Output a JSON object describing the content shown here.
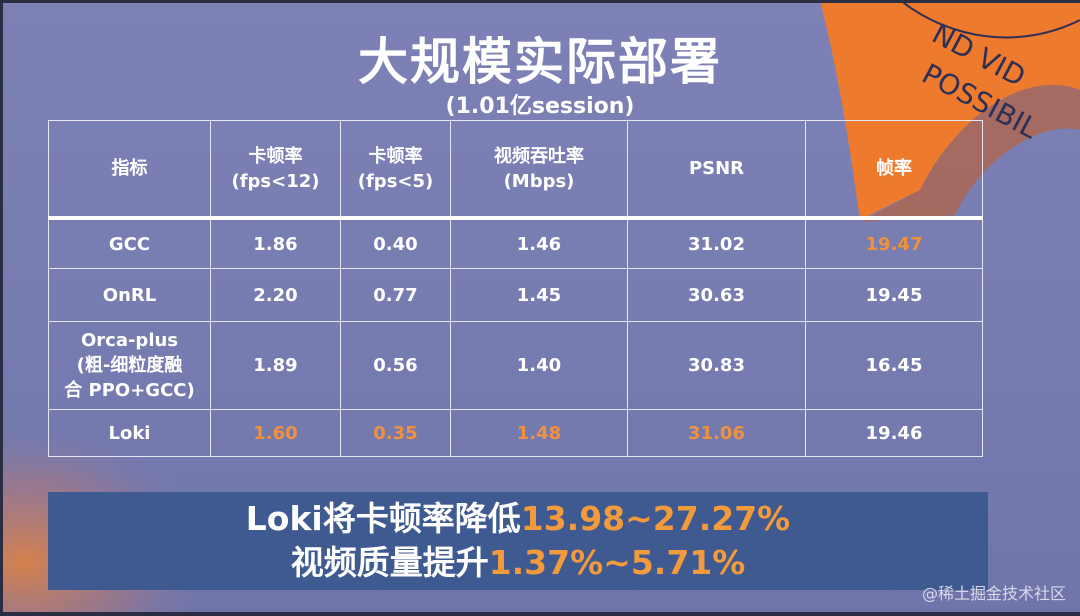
{
  "slide": {
    "title": "大规模实际部署",
    "subtitle": "(1.01亿session)",
    "watermark": "@稀土掘金技术社区",
    "decor_text": [
      "ND VID",
      "POSSIBIL"
    ]
  },
  "colors": {
    "highlight": "#f0913e",
    "banner_bg": "#3f5a91",
    "ribbon": "#ee7a2e"
  },
  "table": {
    "headers": [
      {
        "line1": "指标",
        "line2": ""
      },
      {
        "line1": "卡顿率",
        "line2": "(fps<12)"
      },
      {
        "line1": "卡顿率",
        "line2": "(fps<5)"
      },
      {
        "line1": "视频吞吐率",
        "line2": "(Mbps)"
      },
      {
        "line1": "PSNR",
        "line2": ""
      },
      {
        "line1": "帧率",
        "line2": ""
      }
    ],
    "rows": [
      {
        "name": [
          "GCC"
        ],
        "values": [
          "1.86",
          "0.40",
          "1.46",
          "31.02",
          "19.47"
        ]
      },
      {
        "name": [
          "OnRL"
        ],
        "values": [
          "2.20",
          "0.77",
          "1.45",
          "30.63",
          "19.45"
        ]
      },
      {
        "name": [
          "Orca-plus",
          "(粗-细粒度融",
          "合 PPO+GCC)"
        ],
        "values": [
          "1.89",
          "0.56",
          "1.40",
          "30.83",
          "16.45"
        ]
      },
      {
        "name": [
          "Loki"
        ],
        "values": [
          "1.60",
          "0.35",
          "1.48",
          "31.06",
          "19.46"
        ]
      }
    ]
  },
  "summary": {
    "line1_prefix": "Loki将卡顿率降低",
    "line1_value": "13.98~27.27%",
    "line2_prefix": "视频质量提升",
    "line2_value": "1.37%~5.71%"
  }
}
